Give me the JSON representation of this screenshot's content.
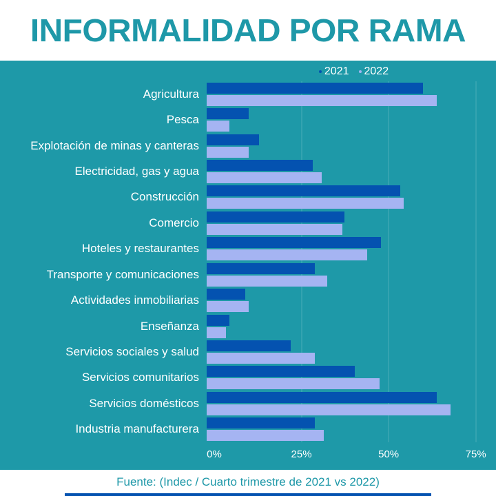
{
  "page": {
    "title": "INFORMALIDAD POR RAMA",
    "source_note": "Fuente: (Indec / Cuarto trimestre de 2021 vs 2022)"
  },
  "legend": {
    "items": [
      {
        "label": "2021",
        "color": "#0452b0"
      },
      {
        "label": "2022",
        "color": "#a5b4f2"
      }
    ]
  },
  "chart_data": {
    "type": "bar",
    "orientation": "horizontal",
    "title": "INFORMALIDAD POR RAMA",
    "categories": [
      "Agricultura",
      "Pesca",
      "Explotación de minas y canteras",
      "Electricidad, gas y agua",
      "Construcción",
      "Comercio",
      "Hoteles y restaurantes",
      "Transporte y comunicaciones",
      "Actividades inmobiliarias",
      "Enseñanza",
      "Servicios sociales y salud",
      "Servicios comunitarios",
      "Servicios domésticos",
      "Industria manufacturera"
    ],
    "series": [
      {
        "name": "2021",
        "color": "#0452b0",
        "values": [
          62,
          12,
          15,
          30.5,
          55.5,
          39.5,
          50,
          31,
          11,
          6.5,
          24,
          42.5,
          66,
          31
        ]
      },
      {
        "name": "2022",
        "color": "#a5b4f2",
        "values": [
          66,
          6.5,
          12,
          33,
          56.5,
          39,
          46,
          34.5,
          12,
          5.5,
          31,
          49.5,
          70,
          33.5
        ]
      }
    ],
    "xlabel": "",
    "ylabel": "",
    "x_axis": {
      "unit": "%",
      "tick_labels": [
        "0%",
        "25%",
        "50%",
        "75%"
      ],
      "tick_values": [
        0,
        25,
        50,
        75
      ],
      "max": 80
    },
    "grid": true,
    "legend_position": "top-center"
  },
  "colors": {
    "background_teal": "#1e99a8",
    "panel_white": "#ffffff",
    "title_text": "#1e98a8",
    "bar_2021": "#0452b0",
    "bar_2022": "#a5b4f2",
    "axis_text": "#ffffff",
    "footer_text": "#1e98a8",
    "bottom_bar": "#0452b0"
  }
}
